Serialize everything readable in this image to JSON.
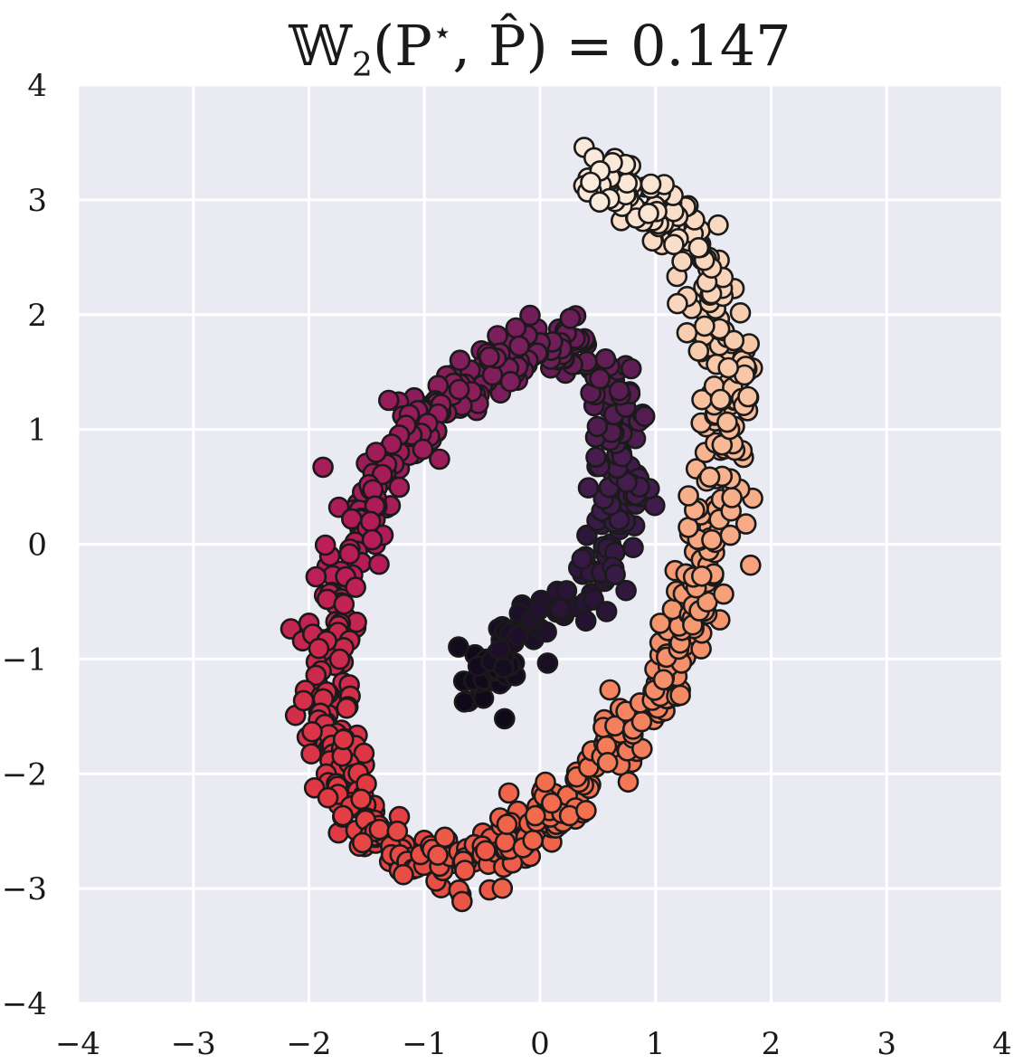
{
  "chart_data": {
    "type": "scatter",
    "title": {
      "prefix": "𝕎",
      "subscript": "2",
      "args": "(P",
      "star": "⋆",
      "comma": ", ",
      "phat": "P̂",
      "suffix": ") = 0.147"
    },
    "xlabel": "",
    "ylabel": "",
    "xlim": [
      -4,
      4
    ],
    "ylim": [
      -4,
      4
    ],
    "xticks": [
      -4,
      -3,
      -2,
      -1,
      0,
      1,
      2,
      3,
      4
    ],
    "yticks": [
      -4,
      -3,
      -2,
      -1,
      0,
      1,
      2,
      3,
      4
    ],
    "xtick_labels": [
      "−4",
      "−3",
      "−2",
      "−1",
      "0",
      "1",
      "2",
      "3",
      "4"
    ],
    "ytick_labels": [
      "−4",
      "−3",
      "−2",
      "−1",
      "0",
      "1",
      "2",
      "3",
      "4"
    ],
    "grid": true,
    "background_color": "#eaeaf2",
    "grid_color": "#ffffff",
    "marker_edge_color": "#1a1a1a",
    "colormap": "rocket (dark purple to cream, along spiral)",
    "color_stops": [
      "#0d0816",
      "#3b1c4b",
      "#7a1e5c",
      "#b71c58",
      "#e23a43",
      "#f26b4b",
      "#f59a72",
      "#f8c8a8",
      "#faebdd"
    ],
    "spiral_centerline": {
      "description": "point-cloud spiral; centerline vertices from inner end (t=0) to outer end (t=1)",
      "x": [
        -0.55,
        -0.35,
        -0.1,
        0.2,
        0.45,
        0.62,
        0.72,
        0.72,
        0.68,
        0.55,
        0.3,
        0.0,
        -0.4,
        -0.8,
        -1.2,
        -1.5,
        -1.72,
        -1.82,
        -1.82,
        -1.7,
        -1.45,
        -1.1,
        -0.7,
        -0.3,
        0.15,
        0.55,
        0.92,
        1.2,
        1.42,
        1.55,
        1.62,
        1.62,
        1.55,
        1.38,
        1.1,
        0.8,
        0.55,
        0.38
      ],
      "y": [
        -1.3,
        -0.95,
        -0.7,
        -0.55,
        -0.35,
        0.0,
        0.3,
        0.75,
        1.2,
        1.5,
        1.7,
        1.75,
        1.55,
        1.25,
        0.8,
        0.25,
        -0.4,
        -1.0,
        -1.6,
        -2.1,
        -2.5,
        -2.75,
        -2.8,
        -2.6,
        -2.3,
        -1.9,
        -1.45,
        -0.85,
        -0.2,
        0.4,
        0.9,
        1.45,
        2.0,
        2.5,
        2.85,
        3.1,
        3.2,
        3.1
      ],
      "spread": 0.12
    },
    "n_points": 1000
  }
}
